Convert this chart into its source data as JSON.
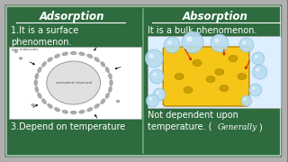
{
  "bg_color": "#2e6b3e",
  "border_outer_color": "#b0b0b0",
  "border_inner_color": "#c8d8c8",
  "divider_color": "#5a9a6a",
  "text_color": "#ffffff",
  "title_color": "#ffffff",
  "outer_bg": "#7a7a7a",
  "left_title": "Adsorption",
  "right_title": "Absorption",
  "left_text1": "1.It is a surface\nphenomenon.",
  "left_text2": "3.Depend on temperature",
  "right_text1": "It is a bulk phenomenon.",
  "right_text2": "Not dependent upon\ntemperature. (",
  "right_text2b": "Generally",
  "right_text2c": ")",
  "title_fontsize": 8.5,
  "body_fontsize": 7.0,
  "small_fontsize": 3.5
}
